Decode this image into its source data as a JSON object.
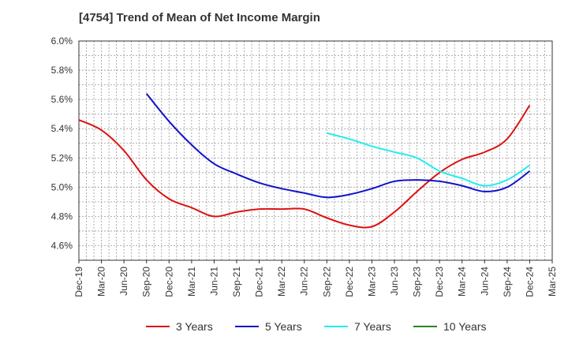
{
  "chart_data": {
    "type": "line",
    "title": "[4754]  Trend of Mean of Net Income Margin",
    "xlabel": "",
    "ylabel": "",
    "ylim": [
      4.5,
      6.0
    ],
    "yticks": [
      "4.6%",
      "4.8%",
      "5.0%",
      "5.2%",
      "5.4%",
      "5.6%",
      "5.8%",
      "6.0%"
    ],
    "ytick_values": [
      4.6,
      4.8,
      5.0,
      5.2,
      5.4,
      5.6,
      5.8,
      6.0
    ],
    "categories": [
      "Dec-19",
      "Mar-20",
      "Jun-20",
      "Sep-20",
      "Dec-20",
      "Mar-21",
      "Jun-21",
      "Sep-21",
      "Dec-21",
      "Mar-22",
      "Jun-22",
      "Sep-22",
      "Dec-22",
      "Mar-23",
      "Jun-23",
      "Sep-23",
      "Dec-23",
      "Mar-24",
      "Jun-24",
      "Sep-24",
      "Dec-24",
      "Mar-25"
    ],
    "grid": true,
    "legend_position": "bottom",
    "series": [
      {
        "name": "3 Years",
        "color": "#dd1111",
        "values": [
          5.46,
          5.39,
          5.25,
          5.05,
          4.92,
          4.86,
          4.8,
          4.83,
          4.85,
          4.85,
          4.85,
          4.79,
          4.74,
          4.73,
          4.83,
          4.97,
          5.1,
          5.19,
          5.24,
          5.33,
          5.56,
          null
        ]
      },
      {
        "name": "5 Years",
        "color": "#1111cc",
        "values": [
          null,
          null,
          null,
          5.64,
          5.45,
          5.29,
          5.16,
          5.09,
          5.03,
          4.99,
          4.96,
          4.93,
          4.95,
          4.99,
          5.04,
          5.05,
          5.04,
          5.01,
          4.97,
          5.0,
          5.11,
          null
        ]
      },
      {
        "name": "7 Years",
        "color": "#22eeee",
        "values": [
          null,
          null,
          null,
          null,
          null,
          null,
          null,
          null,
          null,
          null,
          null,
          5.37,
          5.33,
          5.28,
          5.24,
          5.2,
          5.11,
          5.06,
          5.01,
          5.05,
          5.15,
          null
        ]
      },
      {
        "name": "10 Years",
        "color": "#228822",
        "values": [
          null,
          null,
          null,
          null,
          null,
          null,
          null,
          null,
          null,
          null,
          null,
          null,
          null,
          null,
          null,
          null,
          null,
          null,
          null,
          null,
          null,
          null
        ]
      }
    ]
  }
}
